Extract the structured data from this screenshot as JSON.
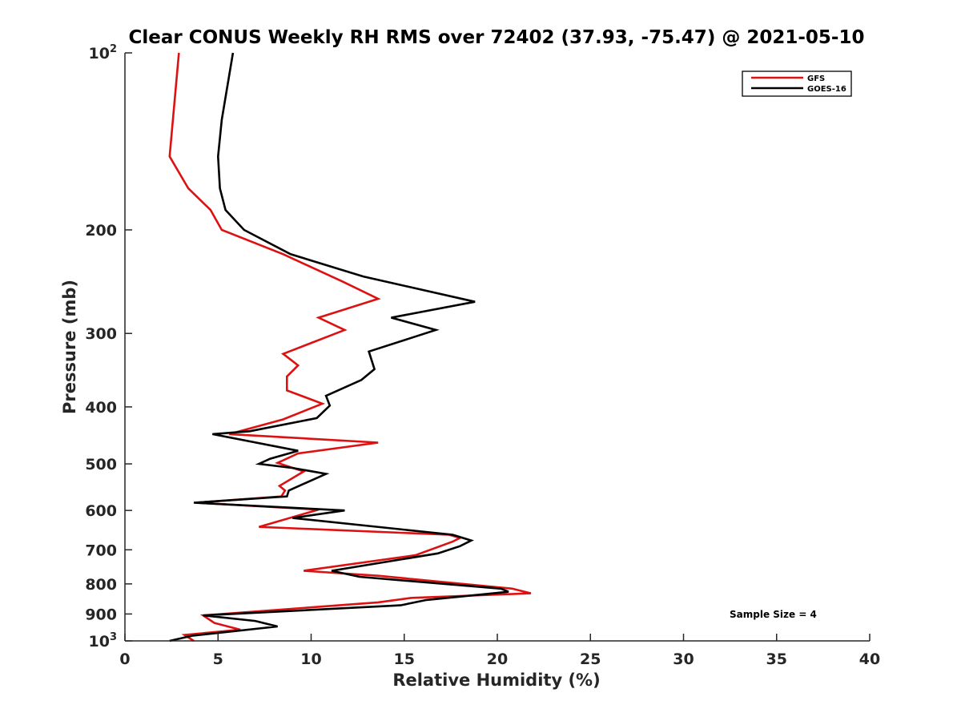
{
  "chart_data": {
    "type": "line",
    "title": "Clear CONUS Weekly RH RMS over 72402 (37.93, -75.47) @ 2021-05-10",
    "xlabel": "Relative Humidity (%)",
    "ylabel": "Pressure (mb)",
    "xlim": [
      0,
      40
    ],
    "ylim": [
      100,
      1000
    ],
    "yscale": "log",
    "y_reversed": true,
    "x_ticks": [
      "0",
      "5",
      "10",
      "15",
      "20",
      "25",
      "30",
      "35",
      "40"
    ],
    "y_ticks": [
      {
        "value": 100,
        "base": "10",
        "exp": "2"
      },
      {
        "value": 200,
        "label": "200"
      },
      {
        "value": 300,
        "label": "300"
      },
      {
        "value": 400,
        "label": "400"
      },
      {
        "value": 500,
        "label": "500"
      },
      {
        "value": 600,
        "label": "600"
      },
      {
        "value": 700,
        "label": "700"
      },
      {
        "value": 800,
        "label": "800"
      },
      {
        "value": 900,
        "label": "900"
      },
      {
        "value": 1000,
        "base": "10",
        "exp": "3"
      }
    ],
    "legend_position": "top-right",
    "grid": false,
    "annotation": "Sample Size = 4",
    "series": [
      {
        "name": "GFS",
        "color": "#dd1111",
        "points": [
          [
            2.9,
            100
          ],
          [
            2.4,
            150
          ],
          [
            3.4,
            170
          ],
          [
            4.6,
            185
          ],
          [
            5.2,
            200
          ],
          [
            8.5,
            220
          ],
          [
            11.7,
            245
          ],
          [
            13.6,
            262
          ],
          [
            10.4,
            282
          ],
          [
            11.8,
            296
          ],
          [
            8.5,
            325
          ],
          [
            9.3,
            340
          ],
          [
            8.7,
            355
          ],
          [
            8.7,
            375
          ],
          [
            10.6,
            395
          ],
          [
            8.5,
            420
          ],
          [
            5.6,
            445
          ],
          [
            13.6,
            460
          ],
          [
            9.3,
            480
          ],
          [
            8.2,
            498
          ],
          [
            9.6,
            515
          ],
          [
            8.3,
            545
          ],
          [
            8.6,
            555
          ],
          [
            8.4,
            568
          ],
          [
            3.8,
            582
          ],
          [
            10.4,
            598
          ],
          [
            7.2,
            640
          ],
          [
            17.4,
            660
          ],
          [
            18.0,
            668
          ],
          [
            17.6,
            678
          ],
          [
            15.6,
            715
          ],
          [
            9.6,
            760
          ],
          [
            13.6,
            775
          ],
          [
            20.8,
            815
          ],
          [
            21.8,
            830
          ],
          [
            15.4,
            845
          ],
          [
            13.6,
            860
          ],
          [
            4.2,
            905
          ],
          [
            4.8,
            932
          ],
          [
            6.2,
            957
          ],
          [
            3.2,
            977
          ],
          [
            3.7,
            1000
          ]
        ]
      },
      {
        "name": "GOES-16",
        "color": "#000000",
        "points": [
          [
            5.8,
            100
          ],
          [
            5.2,
            130
          ],
          [
            5.0,
            150
          ],
          [
            5.1,
            170
          ],
          [
            5.4,
            185
          ],
          [
            6.4,
            200
          ],
          [
            8.9,
            220
          ],
          [
            12.8,
            240
          ],
          [
            18.8,
            265
          ],
          [
            14.3,
            282
          ],
          [
            16.7,
            296
          ],
          [
            13.1,
            322
          ],
          [
            13.4,
            345
          ],
          [
            12.7,
            360
          ],
          [
            10.8,
            383
          ],
          [
            11.0,
            398
          ],
          [
            10.3,
            418
          ],
          [
            6.7,
            440
          ],
          [
            4.7,
            445
          ],
          [
            9.3,
            475
          ],
          [
            7.8,
            490
          ],
          [
            7.2,
            500
          ],
          [
            9.0,
            508
          ],
          [
            10.8,
            520
          ],
          [
            8.8,
            555
          ],
          [
            8.7,
            568
          ],
          [
            3.7,
            582
          ],
          [
            11.8,
            600
          ],
          [
            9.0,
            618
          ],
          [
            17.6,
            660
          ],
          [
            18.6,
            675
          ],
          [
            18.0,
            690
          ],
          [
            16.8,
            710
          ],
          [
            11.1,
            760
          ],
          [
            12.6,
            778
          ],
          [
            20.2,
            815
          ],
          [
            20.6,
            825
          ],
          [
            16.2,
            852
          ],
          [
            14.8,
            870
          ],
          [
            4.2,
            905
          ],
          [
            7.0,
            925
          ],
          [
            8.2,
            945
          ],
          [
            3.6,
            980
          ],
          [
            2.4,
            1000
          ]
        ]
      }
    ]
  }
}
